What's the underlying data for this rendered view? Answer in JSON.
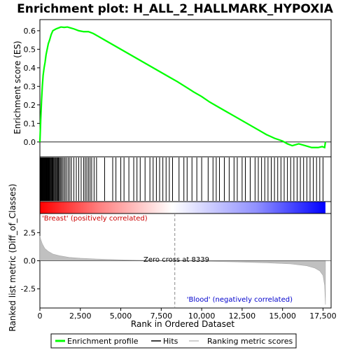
{
  "chart_data": {
    "type": "line",
    "title": "Enrichment plot: H_ALL_2_HALLMARK_HYPOXIA",
    "xlabel": "Rank in Ordered Dataset",
    "xlim": [
      0,
      18000
    ],
    "x_ticks": [
      0,
      2500,
      5000,
      7500,
      10000,
      12500,
      15000,
      17500
    ],
    "x_tick_labels": [
      "0",
      "2,500",
      "5,000",
      "7,500",
      "10,000",
      "12,500",
      "15,000",
      "17,500"
    ],
    "enrichment": {
      "ylabel": "Enrichment score (ES)",
      "ylim": [
        -0.08,
        0.66
      ],
      "y_ticks": [
        0.0,
        0.1,
        0.2,
        0.3,
        0.4,
        0.5,
        0.6
      ],
      "y_tick_labels": [
        "0.0",
        "0.1",
        "0.2",
        "0.3",
        "0.4",
        "0.5",
        "0.6"
      ],
      "series_name": "Enrichment profile",
      "color": "#00ff00",
      "x": [
        0,
        50,
        100,
        150,
        200,
        260,
        320,
        380,
        450,
        520,
        600,
        700,
        800,
        900,
        1000,
        1150,
        1300,
        1500,
        1700,
        1900,
        2100,
        2400,
        2700,
        3000,
        3300,
        3600,
        4000,
        4500,
        5000,
        5500,
        6000,
        6500,
        7000,
        7500,
        8000,
        8500,
        9000,
        9500,
        10000,
        10500,
        11000,
        11500,
        12000,
        12500,
        13000,
        13500,
        14000,
        14500,
        15000,
        15300,
        15600,
        16000,
        16400,
        16800,
        17200,
        17450,
        17600,
        17650
      ],
      "y": [
        0.0,
        0.12,
        0.22,
        0.3,
        0.36,
        0.4,
        0.43,
        0.47,
        0.5,
        0.53,
        0.55,
        0.58,
        0.6,
        0.605,
        0.61,
        0.615,
        0.62,
        0.618,
        0.62,
        0.615,
        0.61,
        0.6,
        0.595,
        0.595,
        0.585,
        0.57,
        0.55,
        0.525,
        0.5,
        0.475,
        0.45,
        0.425,
        0.4,
        0.375,
        0.35,
        0.325,
        0.298,
        0.27,
        0.245,
        0.215,
        0.19,
        0.165,
        0.14,
        0.115,
        0.09,
        0.065,
        0.04,
        0.02,
        0.005,
        -0.01,
        -0.02,
        -0.01,
        -0.02,
        -0.03,
        -0.03,
        -0.025,
        -0.03,
        0.0
      ]
    },
    "hits": {
      "series_name": "Hits",
      "color": "#000000",
      "positions": [
        20,
        45,
        70,
        95,
        120,
        150,
        180,
        210,
        240,
        270,
        300,
        330,
        360,
        390,
        420,
        450,
        480,
        510,
        540,
        570,
        600,
        640,
        680,
        720,
        760,
        800,
        850,
        900,
        950,
        1000,
        1050,
        1100,
        1150,
        1200,
        1260,
        1320,
        1400,
        1480,
        1560,
        1650,
        1750,
        1850,
        1950,
        2100,
        2250,
        2400,
        2550,
        2700,
        2800,
        2900,
        3000,
        3100,
        3200,
        3350,
        3500,
        4000,
        4500,
        4700,
        5000,
        5200,
        5500,
        5800,
        6000,
        6200,
        6500,
        6800,
        7000,
        7200,
        7400,
        7600,
        7800,
        8000,
        8200,
        8600,
        8900,
        9100,
        9400,
        9700,
        10000,
        10400,
        10700,
        10900,
        11100,
        11400,
        11700,
        12000,
        12200,
        12500,
        12700,
        13000,
        13300,
        13500,
        13700,
        13900,
        14100,
        14300,
        14500,
        14700,
        14900,
        15100,
        15300,
        15500,
        15700,
        15900,
        16100,
        16300,
        16500,
        16700,
        16900,
        17100,
        17300,
        17500
      ]
    },
    "ranked_metric": {
      "ylabel": "Ranked list metric (Diff_of_Classes)",
      "series_name": "Ranking metric scores",
      "color": "#c0c0c0",
      "ylim": [
        -4.2,
        4.2
      ],
      "y_ticks": [
        -2.5,
        0.0,
        2.5
      ],
      "y_tick_labels": [
        "-2.5",
        "0.0",
        "2.5"
      ],
      "x": [
        0,
        50,
        150,
        300,
        500,
        800,
        1200,
        1800,
        2500,
        3500,
        5000,
        6500,
        8339,
        10000,
        12000,
        14000,
        15500,
        16500,
        17000,
        17300,
        17500,
        17600,
        17650
      ],
      "y": [
        2.2,
        1.9,
        1.5,
        1.1,
        0.85,
        0.6,
        0.45,
        0.3,
        0.22,
        0.15,
        0.08,
        0.03,
        0.0,
        -0.04,
        -0.1,
        -0.18,
        -0.28,
        -0.45,
        -0.65,
        -0.9,
        -1.3,
        -2.2,
        -3.9
      ]
    },
    "zero_cross": 8339,
    "zero_cross_label": "Zero cross at 8339",
    "positive_label": "'Breast' (positively correlated)",
    "positive_color": "#cc0000",
    "negative_label": "'Blood' (negatively correlated)",
    "negative_color": "#0000cc",
    "legend": {
      "placement": "bottom",
      "items": [
        {
          "label": "Enrichment profile",
          "color": "#00ff00"
        },
        {
          "label": "Hits",
          "color": "#000000"
        },
        {
          "label": "Ranking metric scores",
          "color": "#c0c0c0"
        }
      ]
    }
  }
}
